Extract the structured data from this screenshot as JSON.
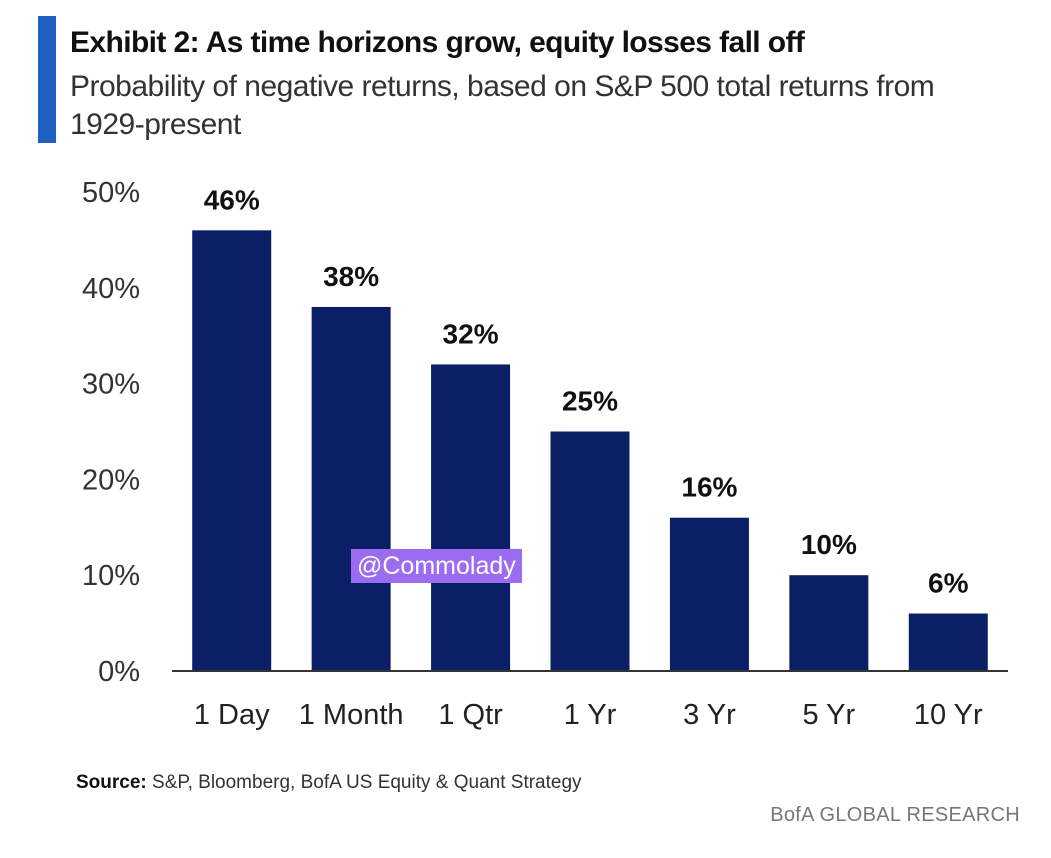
{
  "header": {
    "title": "Exhibit 2: As time horizons grow, equity losses fall off",
    "subtitle": "Probability of negative returns, based on S&P 500 total returns from 1929-present"
  },
  "colors": {
    "bar": "#0b1f66",
    "accent": "#1f5fbf",
    "axis": "#333333",
    "watermark_bg": "#9b6cf0"
  },
  "chart_data": {
    "type": "bar",
    "title": "Exhibit 2: As time horizons grow, equity losses fall off",
    "subtitle": "Probability of negative returns, based on S&P 500 total returns from 1929-present",
    "categories": [
      "1 Day",
      "1 Month",
      "1 Qtr",
      "1 Yr",
      "3 Yr",
      "5 Yr",
      "10 Yr"
    ],
    "values": [
      46,
      38,
      32,
      25,
      16,
      10,
      6
    ],
    "data_labels": [
      "46%",
      "38%",
      "32%",
      "25%",
      "16%",
      "10%",
      "6%"
    ],
    "y_ticks": [
      "0%",
      "10%",
      "20%",
      "30%",
      "40%",
      "50%"
    ],
    "ylim": [
      0,
      50
    ],
    "xlabel": "",
    "ylabel": "",
    "grid": false,
    "legend": "none"
  },
  "watermark": "@Commolady",
  "source": {
    "label": "Source:",
    "text": "S&P, Bloomberg, BofA US Equity & Quant Strategy"
  },
  "brand": "BofA GLOBAL RESEARCH"
}
